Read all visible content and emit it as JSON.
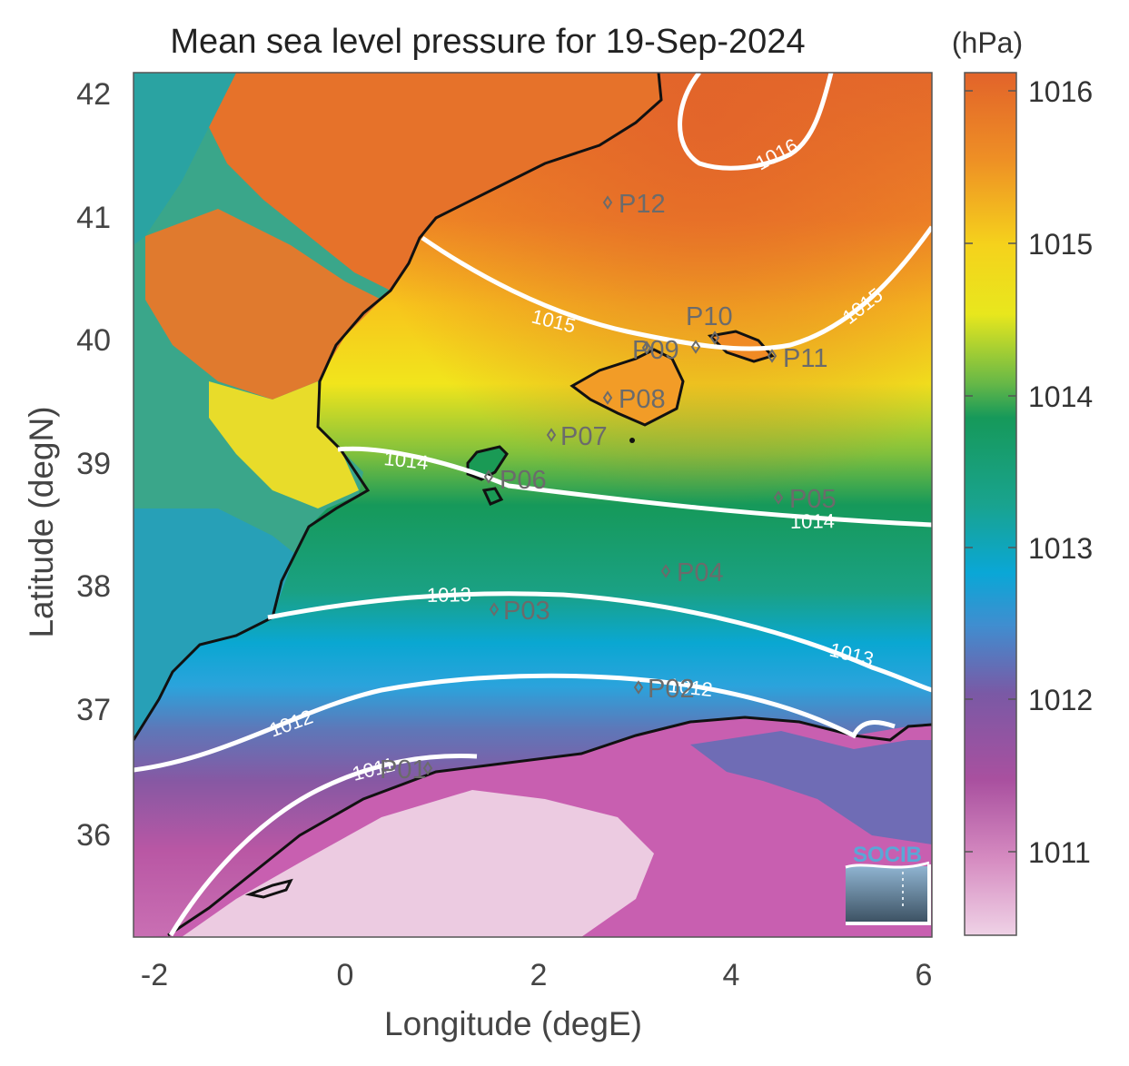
{
  "title": "Mean sea level pressure for 19-Sep-2024",
  "xlabel": "Longitude (degE)",
  "ylabel": "Latitude (degN)",
  "x_ticks": [
    "-2",
    "0",
    "2",
    "4",
    "6"
  ],
  "y_ticks": [
    "36",
    "37",
    "38",
    "39",
    "40",
    "41",
    "42"
  ],
  "colorbar": {
    "unit": "(hPa)",
    "ticks": [
      "1011",
      "1012",
      "1013",
      "1014",
      "1015",
      "1016"
    ]
  },
  "contours": [
    {
      "label": "1016"
    },
    {
      "label": "1015"
    },
    {
      "label": "1014"
    },
    {
      "label": "1013"
    },
    {
      "label": "1012"
    },
    {
      "label": "1011"
    }
  ],
  "stations": [
    {
      "name": "P01"
    },
    {
      "name": "P02"
    },
    {
      "name": "P03"
    },
    {
      "name": "P04"
    },
    {
      "name": "P05"
    },
    {
      "name": "P06"
    },
    {
      "name": "P07"
    },
    {
      "name": "P08"
    },
    {
      "name": "P09"
    },
    {
      "name": "P10"
    },
    {
      "name": "P11"
    },
    {
      "name": "P12"
    }
  ],
  "logo_text": "SOCIB",
  "colors": {
    "high": "#e2692b",
    "mid_high": "#f7e51a",
    "mid": "#1a9a55",
    "mid_low": "#0aa6d6",
    "low": "#7a5aa5",
    "lowest": "#e9c4dc",
    "coast": "#111111",
    "contour": "#ffffff"
  }
}
